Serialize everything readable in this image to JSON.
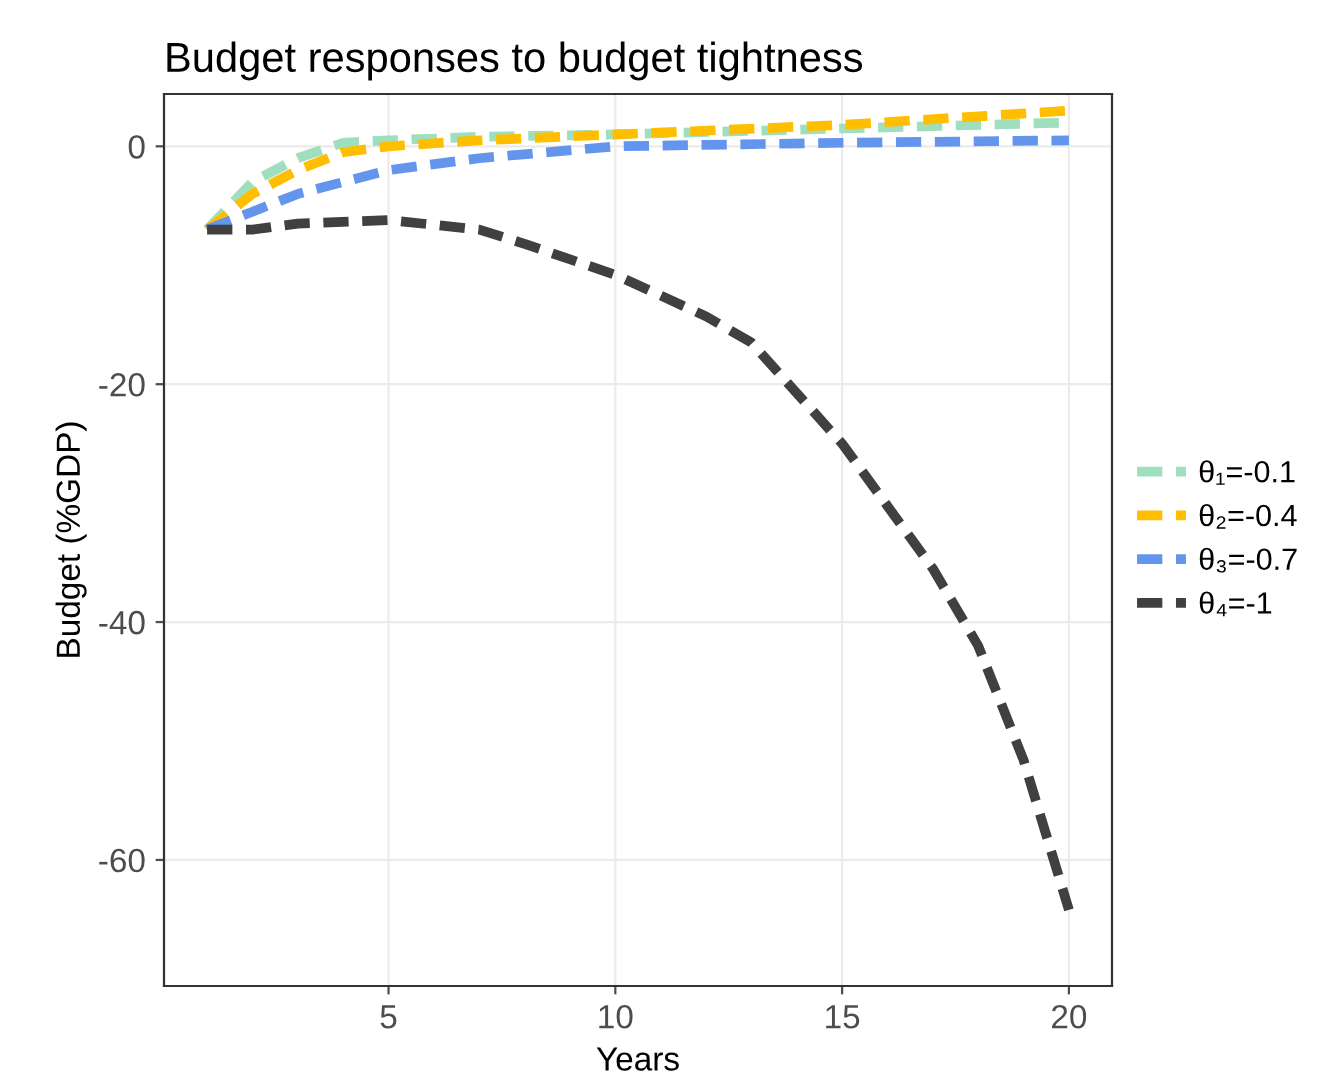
{
  "chart_data": {
    "type": "line",
    "title": "Budget responses to budget tightness",
    "xlabel": "Years",
    "ylabel": "Budget (%GDP)",
    "xlim": [
      0.05,
      20.95
    ],
    "xticks": [
      5,
      10,
      15,
      20
    ],
    "ylim": [
      -70.6,
      4.4
    ],
    "yticks": [
      0,
      -20,
      -40,
      -60
    ],
    "grid": true,
    "legend": "right",
    "line_style": "dashed",
    "marker": "none",
    "series": [
      {
        "name": "θ₁=-0.1",
        "color": "#9fdfbf",
        "x": [
          1,
          2,
          3,
          4,
          5,
          7,
          10,
          15,
          20
        ],
        "values": [
          -7,
          -3,
          -1,
          0.3,
          0.5,
          0.8,
          1,
          1.5,
          2
        ]
      },
      {
        "name": "θ₂=-0.4",
        "color": "#ffbf00",
        "x": [
          1,
          2,
          3,
          4,
          5,
          7,
          10,
          15,
          20
        ],
        "values": [
          -7,
          -4,
          -2,
          -0.5,
          0,
          0.5,
          1,
          1.8,
          3
        ]
      },
      {
        "name": "θ₃=-0.7",
        "color": "#6495ed",
        "x": [
          1,
          2,
          3,
          4,
          5,
          7,
          10,
          15,
          20
        ],
        "values": [
          -7,
          -5.5,
          -4,
          -3,
          -2,
          -1,
          0,
          0.3,
          0.5
        ]
      },
      {
        "name": "θ₄=-1",
        "color": "#404040",
        "x": [
          1,
          2,
          3,
          5,
          7,
          8,
          10,
          12,
          13,
          15,
          17,
          18,
          19,
          20
        ],
        "values": [
          -7,
          -7,
          -6.5,
          -6.2,
          -7,
          -8.2,
          -10.8,
          -14.3,
          -16.5,
          -25,
          -35.5,
          -42,
          -51.6,
          -64.2
        ]
      }
    ]
  }
}
